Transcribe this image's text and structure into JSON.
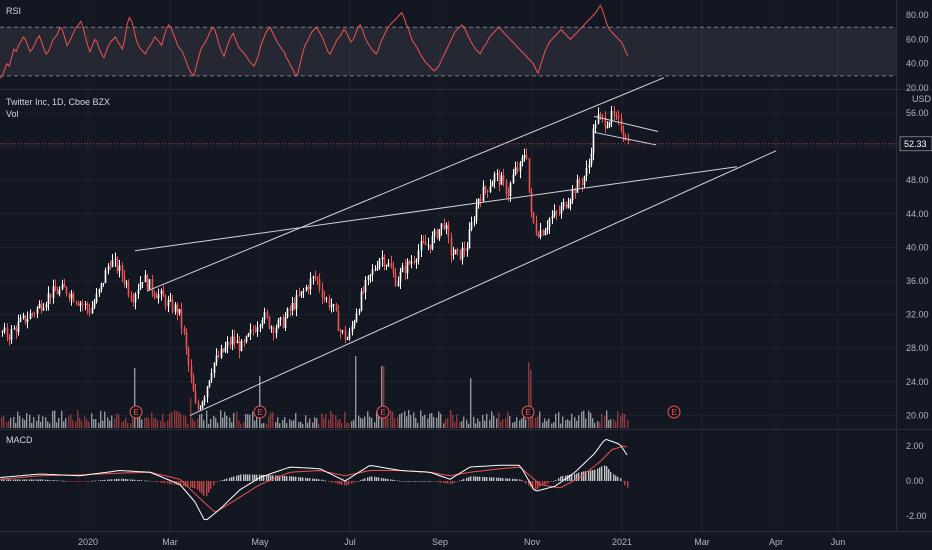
{
  "panes": {
    "rsi": {
      "label": "RSI"
    },
    "main": {
      "title": "Twitter Inc, 1D, Cboe BZX",
      "volume_label": "Vol",
      "currency": "USD",
      "current_price": "52.33"
    },
    "macd": {
      "label": "MACD"
    }
  },
  "colors": {
    "background": "#131722",
    "up": "#ffffff",
    "down": "#ef5350",
    "rsi_line": "#ef5350",
    "macd_line": "#ffffff",
    "signal_line": "#ef5350",
    "trendline": "#d1d4dc",
    "grid": "#1e222d"
  },
  "chart_data": [
    {
      "type": "line",
      "title": "RSI",
      "y_ticks": [
        "80.00",
        "60.00",
        "40.00",
        "20.00"
      ],
      "ylim": [
        20,
        90
      ],
      "bands": [
        30,
        70
      ],
      "values": [
        28,
        30,
        35,
        40,
        38,
        45,
        52,
        50,
        55,
        58,
        62,
        60,
        55,
        50,
        52,
        56,
        60,
        63,
        58,
        52,
        48,
        50,
        55,
        60,
        62,
        65,
        70,
        68,
        62,
        55,
        58,
        62,
        66,
        70,
        72,
        75,
        70,
        62,
        55,
        50,
        55,
        60,
        58,
        52,
        48,
        45,
        50,
        55,
        58,
        60,
        62,
        58,
        55,
        52,
        60,
        72,
        78,
        75,
        68,
        60,
        55,
        52,
        50,
        48,
        52,
        55,
        58,
        62,
        60,
        58,
        55,
        62,
        68,
        72,
        70,
        65,
        60,
        55,
        52,
        50,
        45,
        40,
        35,
        32,
        30,
        38,
        45,
        52,
        55,
        58,
        62,
        66,
        70,
        68,
        62,
        55,
        50,
        46,
        52,
        58,
        62,
        65,
        60,
        55,
        52,
        50,
        48,
        45,
        42,
        40,
        38,
        42,
        48,
        55,
        60,
        65,
        68,
        70,
        66,
        62,
        58,
        55,
        52,
        50,
        45,
        42,
        38,
        35,
        30,
        32,
        40,
        48,
        55,
        58,
        62,
        66,
        68,
        70,
        67,
        64,
        60,
        55,
        50,
        48,
        52,
        56,
        60,
        62,
        65,
        68,
        66,
        62,
        58,
        60,
        65,
        70,
        72,
        68,
        62,
        58,
        55,
        52,
        50,
        48,
        52,
        58,
        62,
        66,
        70,
        72,
        74,
        76,
        78,
        80,
        82,
        78,
        72,
        68,
        62,
        58,
        55,
        52,
        48,
        45,
        42,
        40,
        38,
        36,
        34,
        36,
        38,
        42,
        46,
        50,
        54,
        58,
        62,
        66,
        68,
        70,
        72,
        70,
        66,
        62,
        58,
        55,
        52,
        50,
        48,
        52,
        55,
        58,
        62,
        64,
        66,
        68,
        70,
        68,
        66,
        64,
        62,
        60,
        58,
        56,
        54,
        52,
        50,
        48,
        46,
        44,
        42,
        40,
        36,
        32,
        38,
        44,
        50,
        54,
        58,
        60,
        62,
        64,
        66,
        68,
        66,
        64,
        62,
        60,
        62,
        64,
        66,
        68,
        70,
        72,
        74,
        76,
        78,
        80,
        82,
        85,
        88,
        84,
        78,
        72,
        68,
        66,
        64,
        62,
        60,
        58,
        55,
        50,
        46
      ]
    },
    {
      "type": "candlestick",
      "title": "Twitter Inc, 1D, Cboe BZX",
      "y_ticks": [
        "56.00",
        "52.00",
        "48.00",
        "44.00",
        "40.00",
        "36.00",
        "32.00",
        "28.00",
        "24.00",
        "20.00"
      ],
      "ylim": [
        18.5,
        58.5
      ],
      "current_price": 52.33,
      "x_ticks": [
        "2020",
        "Mar",
        "May",
        "Jul",
        "Sep",
        "Nov",
        "2021",
        "Mar",
        "Apr",
        "Jun"
      ],
      "closes_anchor": [
        [
          0,
          30.0
        ],
        [
          8,
          29.5
        ],
        [
          20,
          31.0
        ],
        [
          35,
          32.5
        ],
        [
          50,
          34.5
        ],
        [
          65,
          35.0
        ],
        [
          75,
          34.0
        ],
        [
          90,
          32.5
        ],
        [
          100,
          35.0
        ],
        [
          110,
          38.5
        ],
        [
          118,
          37.5
        ],
        [
          125,
          36.0
        ],
        [
          132,
          34.0
        ],
        [
          142,
          36.5
        ],
        [
          152,
          35.0
        ],
        [
          162,
          34.0
        ],
        [
          170,
          33.0
        ],
        [
          178,
          32.5
        ],
        [
          183,
          30.0
        ],
        [
          190,
          24.5
        ],
        [
          196,
          20.5
        ],
        [
          204,
          22.5
        ],
        [
          212,
          26.0
        ],
        [
          222,
          27.5
        ],
        [
          232,
          29.0
        ],
        [
          242,
          28.0
        ],
        [
          252,
          30.0
        ],
        [
          262,
          32.0
        ],
        [
          272,
          30.5
        ],
        [
          282,
          31.0
        ],
        [
          292,
          33.0
        ],
        [
          302,
          34.5
        ],
        [
          310,
          36.0
        ],
        [
          316,
          36.5
        ],
        [
          324,
          34.0
        ],
        [
          332,
          33.0
        ],
        [
          340,
          30.0
        ],
        [
          348,
          29.0
        ],
        [
          356,
          32.5
        ],
        [
          364,
          35.0
        ],
        [
          372,
          37.0
        ],
        [
          380,
          39.0
        ],
        [
          388,
          38.0
        ],
        [
          396,
          36.0
        ],
        [
          404,
          37.5
        ],
        [
          412,
          38.5
        ],
        [
          420,
          40.0
        ],
        [
          430,
          40.5
        ],
        [
          438,
          42.0
        ],
        [
          444,
          43.0
        ],
        [
          450,
          39.5
        ],
        [
          458,
          39.0
        ],
        [
          466,
          40.0
        ],
        [
          472,
          43.0
        ],
        [
          478,
          46.0
        ],
        [
          486,
          47.0
        ],
        [
          494,
          48.5
        ],
        [
          500,
          48.0
        ],
        [
          508,
          46.5
        ],
        [
          514,
          49.0
        ],
        [
          520,
          49.5
        ],
        [
          526,
          52.0
        ],
        [
          530,
          44.0
        ],
        [
          536,
          42.0
        ],
        [
          542,
          42.0
        ],
        [
          550,
          43.5
        ],
        [
          558,
          44.0
        ],
        [
          566,
          45.5
        ],
        [
          574,
          47.0
        ],
        [
          582,
          48.0
        ],
        [
          588,
          49.5
        ],
        [
          592,
          53.0
        ],
        [
          596,
          55.5
        ],
        [
          604,
          55.0
        ],
        [
          612,
          55.5
        ],
        [
          620,
          54.5
        ],
        [
          625,
          53.5
        ],
        [
          628,
          52.3
        ]
      ],
      "earnings_markers": [
        "E",
        "E",
        "E",
        "E",
        "E"
      ]
    },
    {
      "type": "line",
      "title": "MACD",
      "y_ticks": [
        "2.00",
        "0.00",
        "-2.00"
      ],
      "ylim": [
        -2.8,
        2.8
      ],
      "macd_anchor": [
        [
          0,
          0.2
        ],
        [
          40,
          0.4
        ],
        [
          80,
          0.3
        ],
        [
          120,
          0.6
        ],
        [
          150,
          0.5
        ],
        [
          180,
          -0.2
        ],
        [
          195,
          -1.2
        ],
        [
          205,
          -2.3
        ],
        [
          220,
          -1.6
        ],
        [
          240,
          -0.5
        ],
        [
          260,
          0.2
        ],
        [
          290,
          0.8
        ],
        [
          320,
          0.7
        ],
        [
          345,
          0.0
        ],
        [
          370,
          0.9
        ],
        [
          400,
          0.6
        ],
        [
          430,
          0.5
        ],
        [
          450,
          0.1
        ],
        [
          470,
          0.8
        ],
        [
          500,
          0.9
        ],
        [
          520,
          0.9
        ],
        [
          535,
          -0.6
        ],
        [
          555,
          -0.3
        ],
        [
          575,
          0.5
        ],
        [
          595,
          1.6
        ],
        [
          605,
          2.4
        ],
        [
          620,
          2.1
        ],
        [
          628,
          1.4
        ]
      ],
      "signal_anchor": [
        [
          0,
          0.1
        ],
        [
          40,
          0.3
        ],
        [
          80,
          0.35
        ],
        [
          120,
          0.45
        ],
        [
          150,
          0.5
        ],
        [
          180,
          0.1
        ],
        [
          200,
          -1.0
        ],
        [
          215,
          -1.8
        ],
        [
          235,
          -1.1
        ],
        [
          260,
          -0.2
        ],
        [
          290,
          0.5
        ],
        [
          320,
          0.6
        ],
        [
          345,
          0.3
        ],
        [
          370,
          0.6
        ],
        [
          400,
          0.6
        ],
        [
          430,
          0.5
        ],
        [
          450,
          0.3
        ],
        [
          470,
          0.5
        ],
        [
          500,
          0.7
        ],
        [
          520,
          0.8
        ],
        [
          540,
          -0.2
        ],
        [
          560,
          -0.4
        ],
        [
          580,
          0.2
        ],
        [
          600,
          1.1
        ],
        [
          612,
          1.8
        ],
        [
          624,
          2.0
        ],
        [
          628,
          1.9
        ]
      ]
    }
  ]
}
